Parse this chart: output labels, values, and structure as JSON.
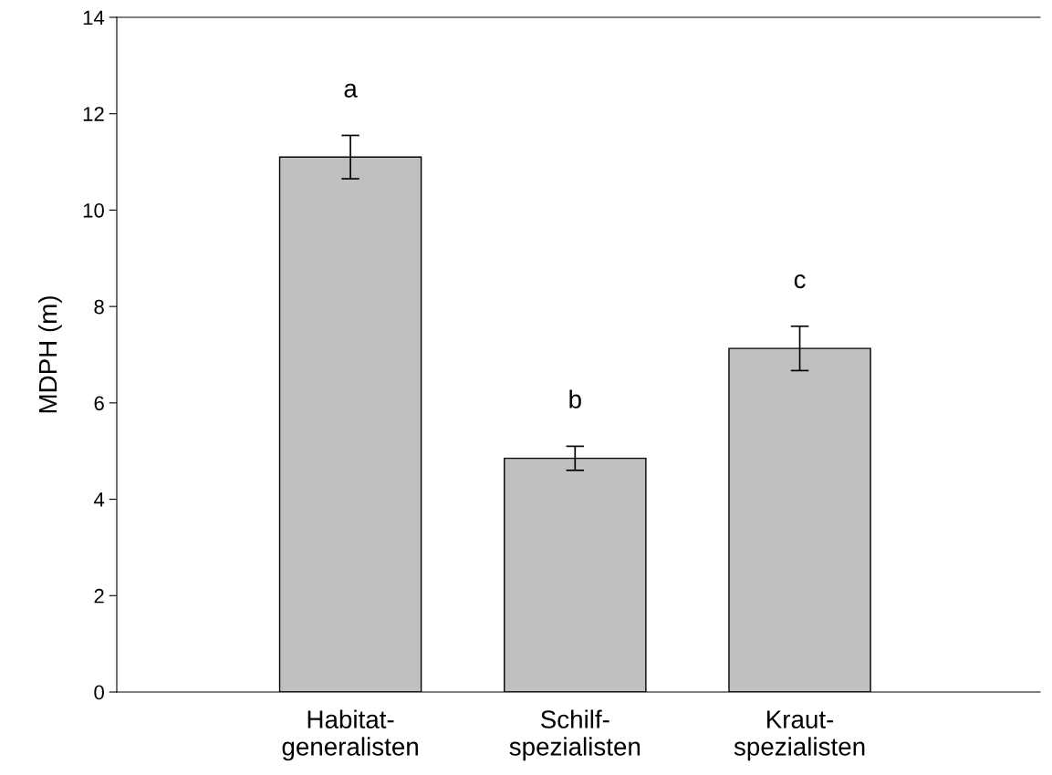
{
  "chart_data": {
    "type": "bar",
    "ylabel": "MDPH (m)",
    "categories": [
      "Habitat-\ngeneralisten",
      "Schilf-\nspezialisten",
      "Kraut-\nspezialisten"
    ],
    "values": [
      11.1,
      4.85,
      7.13
    ],
    "errors": [
      0.45,
      0.25,
      0.46
    ],
    "color": "#c0c0c0",
    "ylim": [
      0,
      14
    ],
    "yticks": [
      0,
      2,
      4,
      6,
      8,
      10,
      12,
      14
    ],
    "grid": false,
    "annotations": [
      "a",
      "b",
      "c"
    ]
  }
}
